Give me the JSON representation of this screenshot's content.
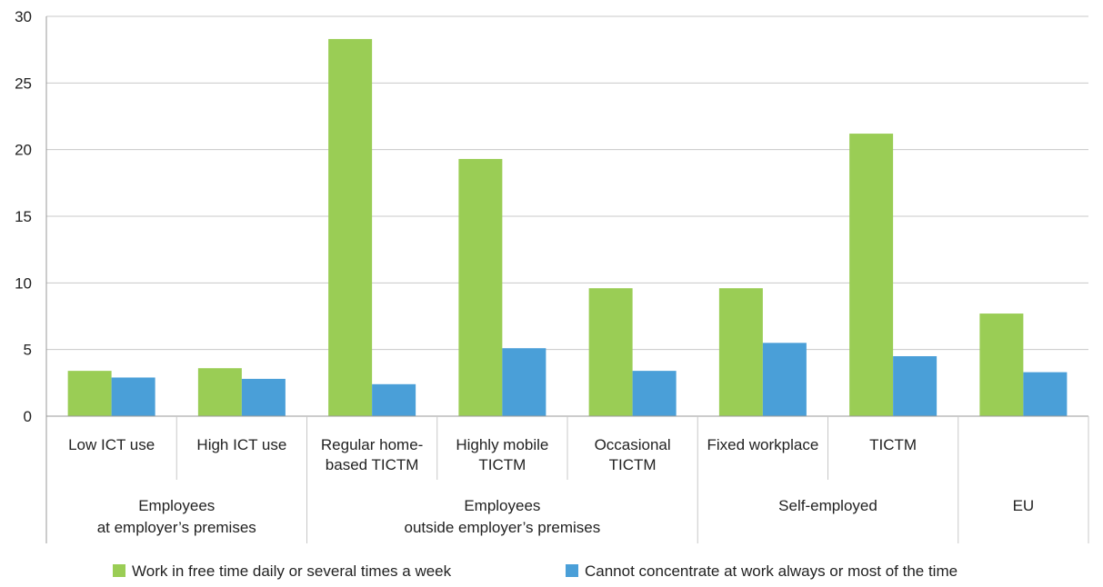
{
  "chart_data": {
    "type": "bar",
    "ylim": [
      0,
      30
    ],
    "yticks": [
      0,
      5,
      10,
      15,
      20,
      25,
      30
    ],
    "grid": true,
    "legend_position": "bottom",
    "categories": [
      [
        "Low ICT use"
      ],
      [
        "High ICT use"
      ],
      [
        "Regular home-",
        "based TICTM"
      ],
      [
        "Highly mobile",
        "TICTM"
      ],
      [
        "Occasional",
        "TICTM"
      ],
      [
        "Fixed workplace"
      ],
      [
        "TICTM"
      ],
      [
        ""
      ]
    ],
    "groups": [
      {
        "label": [
          "Employees",
          "at employer’s premises"
        ],
        "start": 0,
        "end": 1
      },
      {
        "label": [
          "Employees",
          "outside employer’s premises"
        ],
        "start": 2,
        "end": 4
      },
      {
        "label": [
          "Self-employed"
        ],
        "start": 5,
        "end": 6
      },
      {
        "label": [
          "EU"
        ],
        "start": 7,
        "end": 7
      }
    ],
    "series": [
      {
        "name": "Work in free time daily or several times a week",
        "color": "#9acd55",
        "values": [
          3.4,
          3.6,
          28.3,
          19.3,
          9.6,
          9.6,
          21.2,
          7.7
        ]
      },
      {
        "name": "Cannot concentrate at work always or most of the time",
        "color": "#4a9fd8",
        "values": [
          2.9,
          2.8,
          2.4,
          5.1,
          3.4,
          5.5,
          4.5,
          3.3
        ]
      }
    ]
  }
}
